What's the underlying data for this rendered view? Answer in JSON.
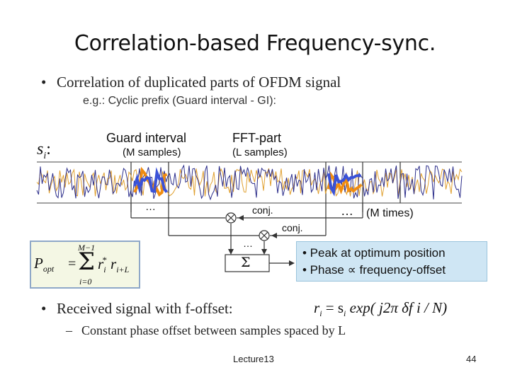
{
  "slide": {
    "title": "Correlation-based Frequency-sync.",
    "bullet1": "Correlation of duplicated parts of OFDM signal",
    "bullet1_sub": "e.g.: Cyclic prefix (Guard interval - GI):",
    "diagram": {
      "signal_label": "s",
      "signal_subscript": "i",
      "signal_colon": ":",
      "guard_label": "Guard interval",
      "guard_samples": "(M samples)",
      "fft_label": "FFT-part",
      "fft_samples": "(L samples)",
      "ellipsis": "…",
      "conj_1": "conj.",
      "conj_2": "conj.",
      "m_times": "(M times)",
      "sum_symbol": "Σ",
      "notes": [
        "• Peak at optimum position",
        "• Phase ∝ frequency-offset"
      ]
    },
    "formula": {
      "lhs": "P",
      "lhs_sub": "opt",
      "eq": "=",
      "upper": "M−1",
      "sum": "Σ",
      "lower": "i=0",
      "term": "r",
      "term_sub1": "i",
      "star": "*",
      "term2": "r",
      "term_sub2": "i+L"
    },
    "bullet2": "Received signal with f-offset:",
    "bullet2_formula": {
      "lhs": "r",
      "lhs_sub": "i",
      "eq": "= s",
      "s_sub": "i",
      "rest": "exp( j2π δf i / N)"
    },
    "bullet2_sub": "Constant phase offset between samples spaced by L",
    "footer_left": "Lecture13",
    "footer_right": "44",
    "bullet_glyph": "•",
    "dash_glyph": "–"
  },
  "colors": {
    "wave_dark": "#2b2d8a",
    "wave_orange": "#e0a030",
    "wave_highlight_orange": "#f08c10",
    "wave_highlight_blue": "#3a52d8",
    "note_box": "#cfe6f4",
    "formula_box": "#f4f7e4"
  }
}
